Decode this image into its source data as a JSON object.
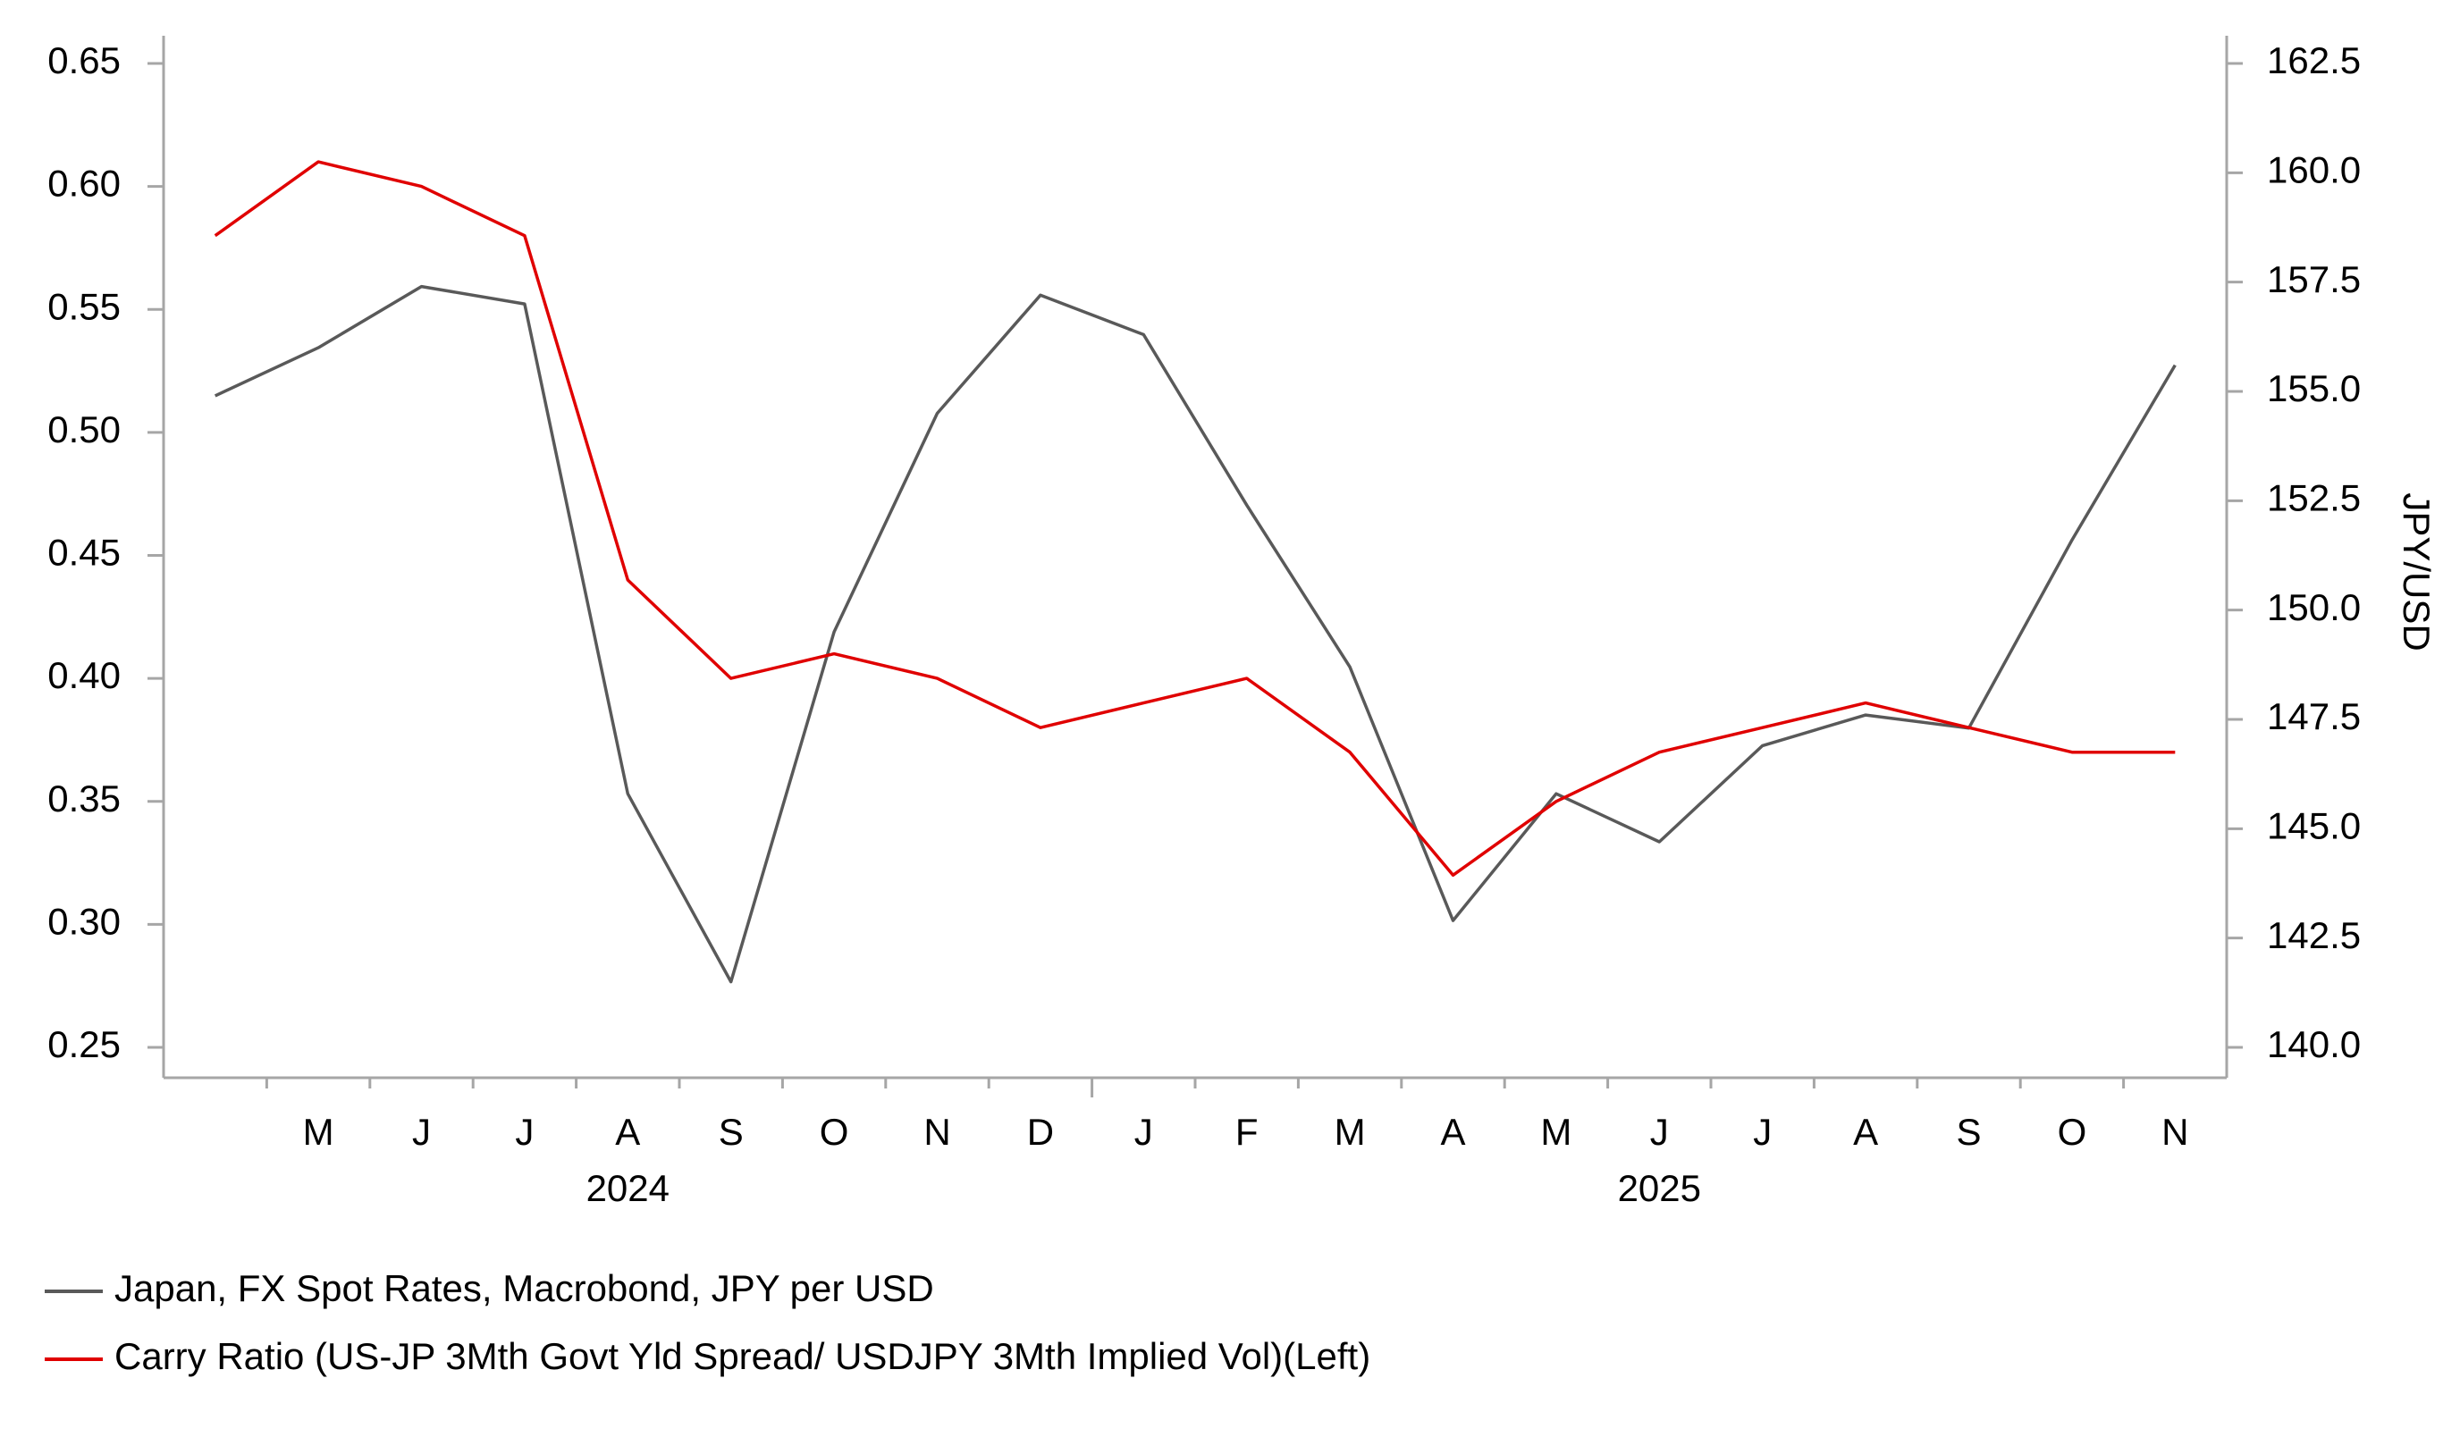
{
  "chart_data": {
    "type": "line",
    "x": [
      "2024-04",
      "2024-05",
      "2024-06",
      "2024-07",
      "2024-08",
      "2024-09",
      "2024-10",
      "2024-11",
      "2024-12",
      "2025-01",
      "2025-02",
      "2025-03",
      "2025-04",
      "2025-05",
      "2025-06",
      "2025-07",
      "2025-08",
      "2025-09",
      "2025-10",
      "2025-11"
    ],
    "xlim": [
      "2024-04",
      "2025-12"
    ],
    "xticks": [
      {
        "value": "2024-05",
        "label": "M"
      },
      {
        "value": "2024-06",
        "label": "J"
      },
      {
        "value": "2024-07",
        "label": "J"
      },
      {
        "value": "2024-08",
        "label": "A"
      },
      {
        "value": "2024-09",
        "label": "S"
      },
      {
        "value": "2024-10",
        "label": "O"
      },
      {
        "value": "2024-11",
        "label": "N"
      },
      {
        "value": "2024-12",
        "label": "D"
      },
      {
        "value": "2025-01",
        "label": "J"
      },
      {
        "value": "2025-02",
        "label": "F"
      },
      {
        "value": "2025-03",
        "label": "M"
      },
      {
        "value": "2025-04",
        "label": "A"
      },
      {
        "value": "2025-05",
        "label": "M"
      },
      {
        "value": "2025-06",
        "label": "J"
      },
      {
        "value": "2025-07",
        "label": "J"
      },
      {
        "value": "2025-08",
        "label": "A"
      },
      {
        "value": "2025-09",
        "label": "S"
      },
      {
        "value": "2025-10",
        "label": "O"
      },
      {
        "value": "2025-11",
        "label": "N"
      }
    ],
    "years": [
      "2024",
      "2025"
    ],
    "ylim": [
      0.25,
      0.65
    ],
    "yticks": [
      0.25,
      {
        "value": 0.3,
        "label": "0.30"
      },
      0.35,
      {
        "value": 0.4,
        "label": "0.40"
      },
      0.45,
      {
        "value": 0.5,
        "label": "0.50"
      },
      0.55,
      {
        "value": 0.6,
        "label": "0.60"
      },
      0.65
    ],
    "y2label": "JPY/USD",
    "y2lim": [
      140,
      162.5
    ],
    "y2ticks": [
      {
        "value": 140,
        "label": "140.0"
      },
      142.5,
      {
        "value": 145,
        "label": "145.0"
      },
      147.5,
      {
        "value": 150,
        "label": "150.0"
      },
      152.5,
      {
        "value": 155,
        "label": "155.0"
      },
      157.5,
      {
        "value": 160,
        "label": "160.0"
      },
      162.5
    ],
    "series": [
      {
        "name": "Japan, FX Spot Rates, Macrobond, JPY per USD",
        "color": "#595959",
        "axis": "y2",
        "values": [
          154.9,
          156.0,
          157.4,
          157.0,
          145.8,
          141.5,
          149.5,
          154.5,
          157.2,
          156.3,
          152.4,
          148.7,
          142.9,
          145.8,
          144.7,
          146.9,
          147.6,
          147.3,
          151.6,
          155.6
        ]
      },
      {
        "name": "Carry Ratio (US-JP 3Mth Govt Yld Spread/ USDJPY 3Mth Implied Vol)(Left)",
        "color": "#e00000",
        "values": [
          0.58,
          0.61,
          0.6,
          0.58,
          0.44,
          0.4,
          0.41,
          0.4,
          0.38,
          0.39,
          0.4,
          0.37,
          0.32,
          0.35,
          0.37,
          0.38,
          0.39,
          0.38,
          0.37,
          0.37
        ]
      }
    ]
  }
}
